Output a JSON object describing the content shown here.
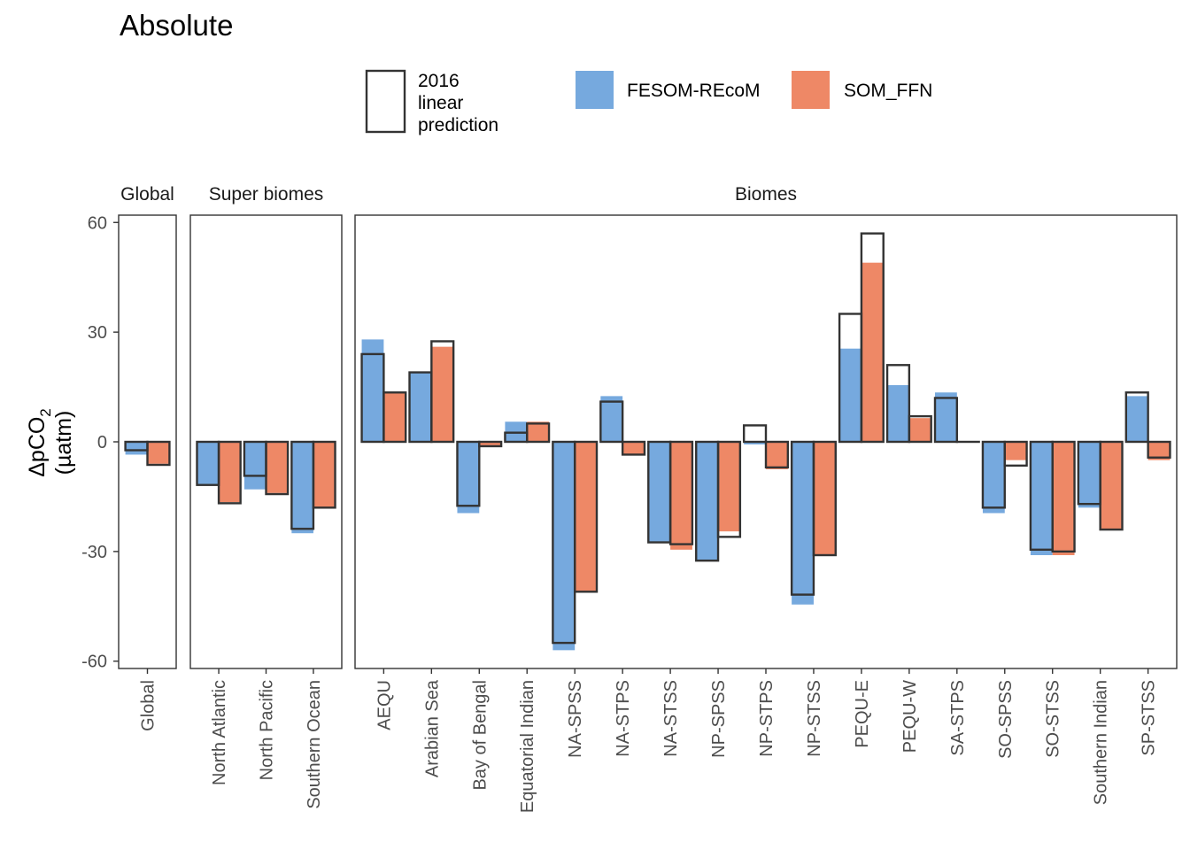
{
  "chart_data": {
    "type": "bar",
    "title": "Absolute",
    "ylabel_main": "ΔpCO",
    "ylabel_sub": "2",
    "ylabel_unit": "(µatm)",
    "ylim": [
      -62,
      62
    ],
    "yticks": [
      60,
      30,
      0,
      -30,
      -60
    ],
    "ytick_labels": [
      "60",
      "30",
      "0",
      "-30",
      "-60"
    ],
    "legend": {
      "outline_label_lines": [
        "2016",
        "linear",
        "prediction"
      ],
      "series_names": [
        "FESOM-REcoM",
        "SOM_FFN"
      ]
    },
    "colors": {
      "FESOM-REcoM": "#76A9DE",
      "SOM_FFN": "#EE8866",
      "outline": "#333333"
    },
    "panels": [
      {
        "strip": "Global",
        "categories": [
          "Global"
        ],
        "FESOM-REcoM": {
          "absolute": [
            -3.5
          ],
          "prediction": [
            -2.3
          ]
        },
        "SOM_FFN": {
          "absolute": [
            -6.0
          ],
          "prediction": [
            -6.3
          ]
        }
      },
      {
        "strip": "Super biomes",
        "categories": [
          "North Atlantic",
          "North Pacific",
          "Southern Ocean"
        ],
        "FESOM-REcoM": {
          "absolute": [
            -11.5,
            -13.0,
            -25.0
          ],
          "prediction": [
            -11.8,
            -9.3,
            -23.8
          ]
        },
        "SOM_FFN": {
          "absolute": [
            -16.5,
            -14.0,
            -18.0
          ],
          "prediction": [
            -16.8,
            -14.3,
            -18.0
          ]
        }
      },
      {
        "strip": "Biomes",
        "categories": [
          "AEQU",
          "Arabian Sea",
          "Bay of Bengal",
          "Equatorial Indian",
          "NA-SPSS",
          "NA-STPS",
          "NA-STSS",
          "NP-SPSS",
          "NP-STPS",
          "NP-STSS",
          "PEQU-E",
          "PEQU-W",
          "SA-STPS",
          "SO-SPSS",
          "SO-STSS",
          "Southern Indian",
          "SP-STSS"
        ],
        "FESOM-REcoM": {
          "absolute": [
            28.0,
            19.0,
            -19.5,
            5.5,
            -57.0,
            12.5,
            -27.5,
            -32.5,
            -0.7,
            -44.5,
            25.5,
            15.5,
            13.5,
            -19.5,
            -31.0,
            -18.0,
            12.5
          ],
          "prediction": [
            24.0,
            19.0,
            -17.5,
            2.5,
            -55.0,
            11.0,
            -27.5,
            -32.5,
            4.5,
            -41.8,
            35.0,
            21.0,
            12.0,
            -18.0,
            -29.5,
            -17.0,
            13.5
          ]
        },
        "SOM_FFN": {
          "absolute": [
            13.5,
            26.0,
            -1.0,
            5.5,
            -41.0,
            -3.5,
            -29.5,
            -24.5,
            -7.5,
            -31.0,
            49.0,
            6.5,
            0.0,
            -5.0,
            -31.0,
            -24.0,
            -5.0
          ],
          "prediction": [
            13.5,
            27.5,
            -1.2,
            5.0,
            -41.0,
            -3.5,
            -28.0,
            -26.0,
            -7.0,
            -31.0,
            57.0,
            7.0,
            0.0,
            -6.5,
            -30.0,
            -24.0,
            -4.3
          ]
        }
      }
    ]
  }
}
